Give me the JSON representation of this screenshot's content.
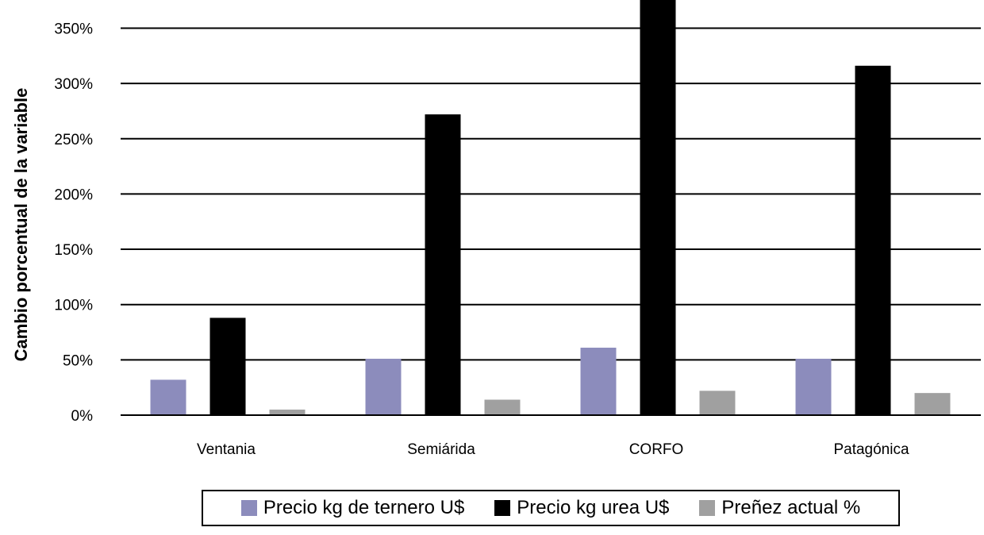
{
  "chart_data": {
    "type": "bar",
    "title": "",
    "xlabel": "",
    "ylabel": "Cambio porcentual de la variable",
    "categories": [
      "Ventania",
      "Semiárida",
      "CORFO",
      "Patagónica"
    ],
    "ylim": [
      0,
      375
    ],
    "yticks": [
      0,
      50,
      100,
      150,
      200,
      250,
      300,
      350
    ],
    "ytick_labels": [
      "0%",
      "50%",
      "100%",
      "150%",
      "200%",
      "250%",
      "300%",
      "350%"
    ],
    "grid": true,
    "legend_position": "bottom",
    "series": [
      {
        "name": "Precio kg de ternero U$",
        "color": "#8c8cbc",
        "values": [
          32,
          51,
          61,
          51
        ]
      },
      {
        "name": "Precio kg urea U$",
        "color": "#000000",
        "values": [
          88,
          272,
          390,
          316
        ]
      },
      {
        "name": "Preñez actual %",
        "color": "#a0a0a0",
        "values": [
          5,
          14,
          22,
          20
        ]
      }
    ]
  }
}
